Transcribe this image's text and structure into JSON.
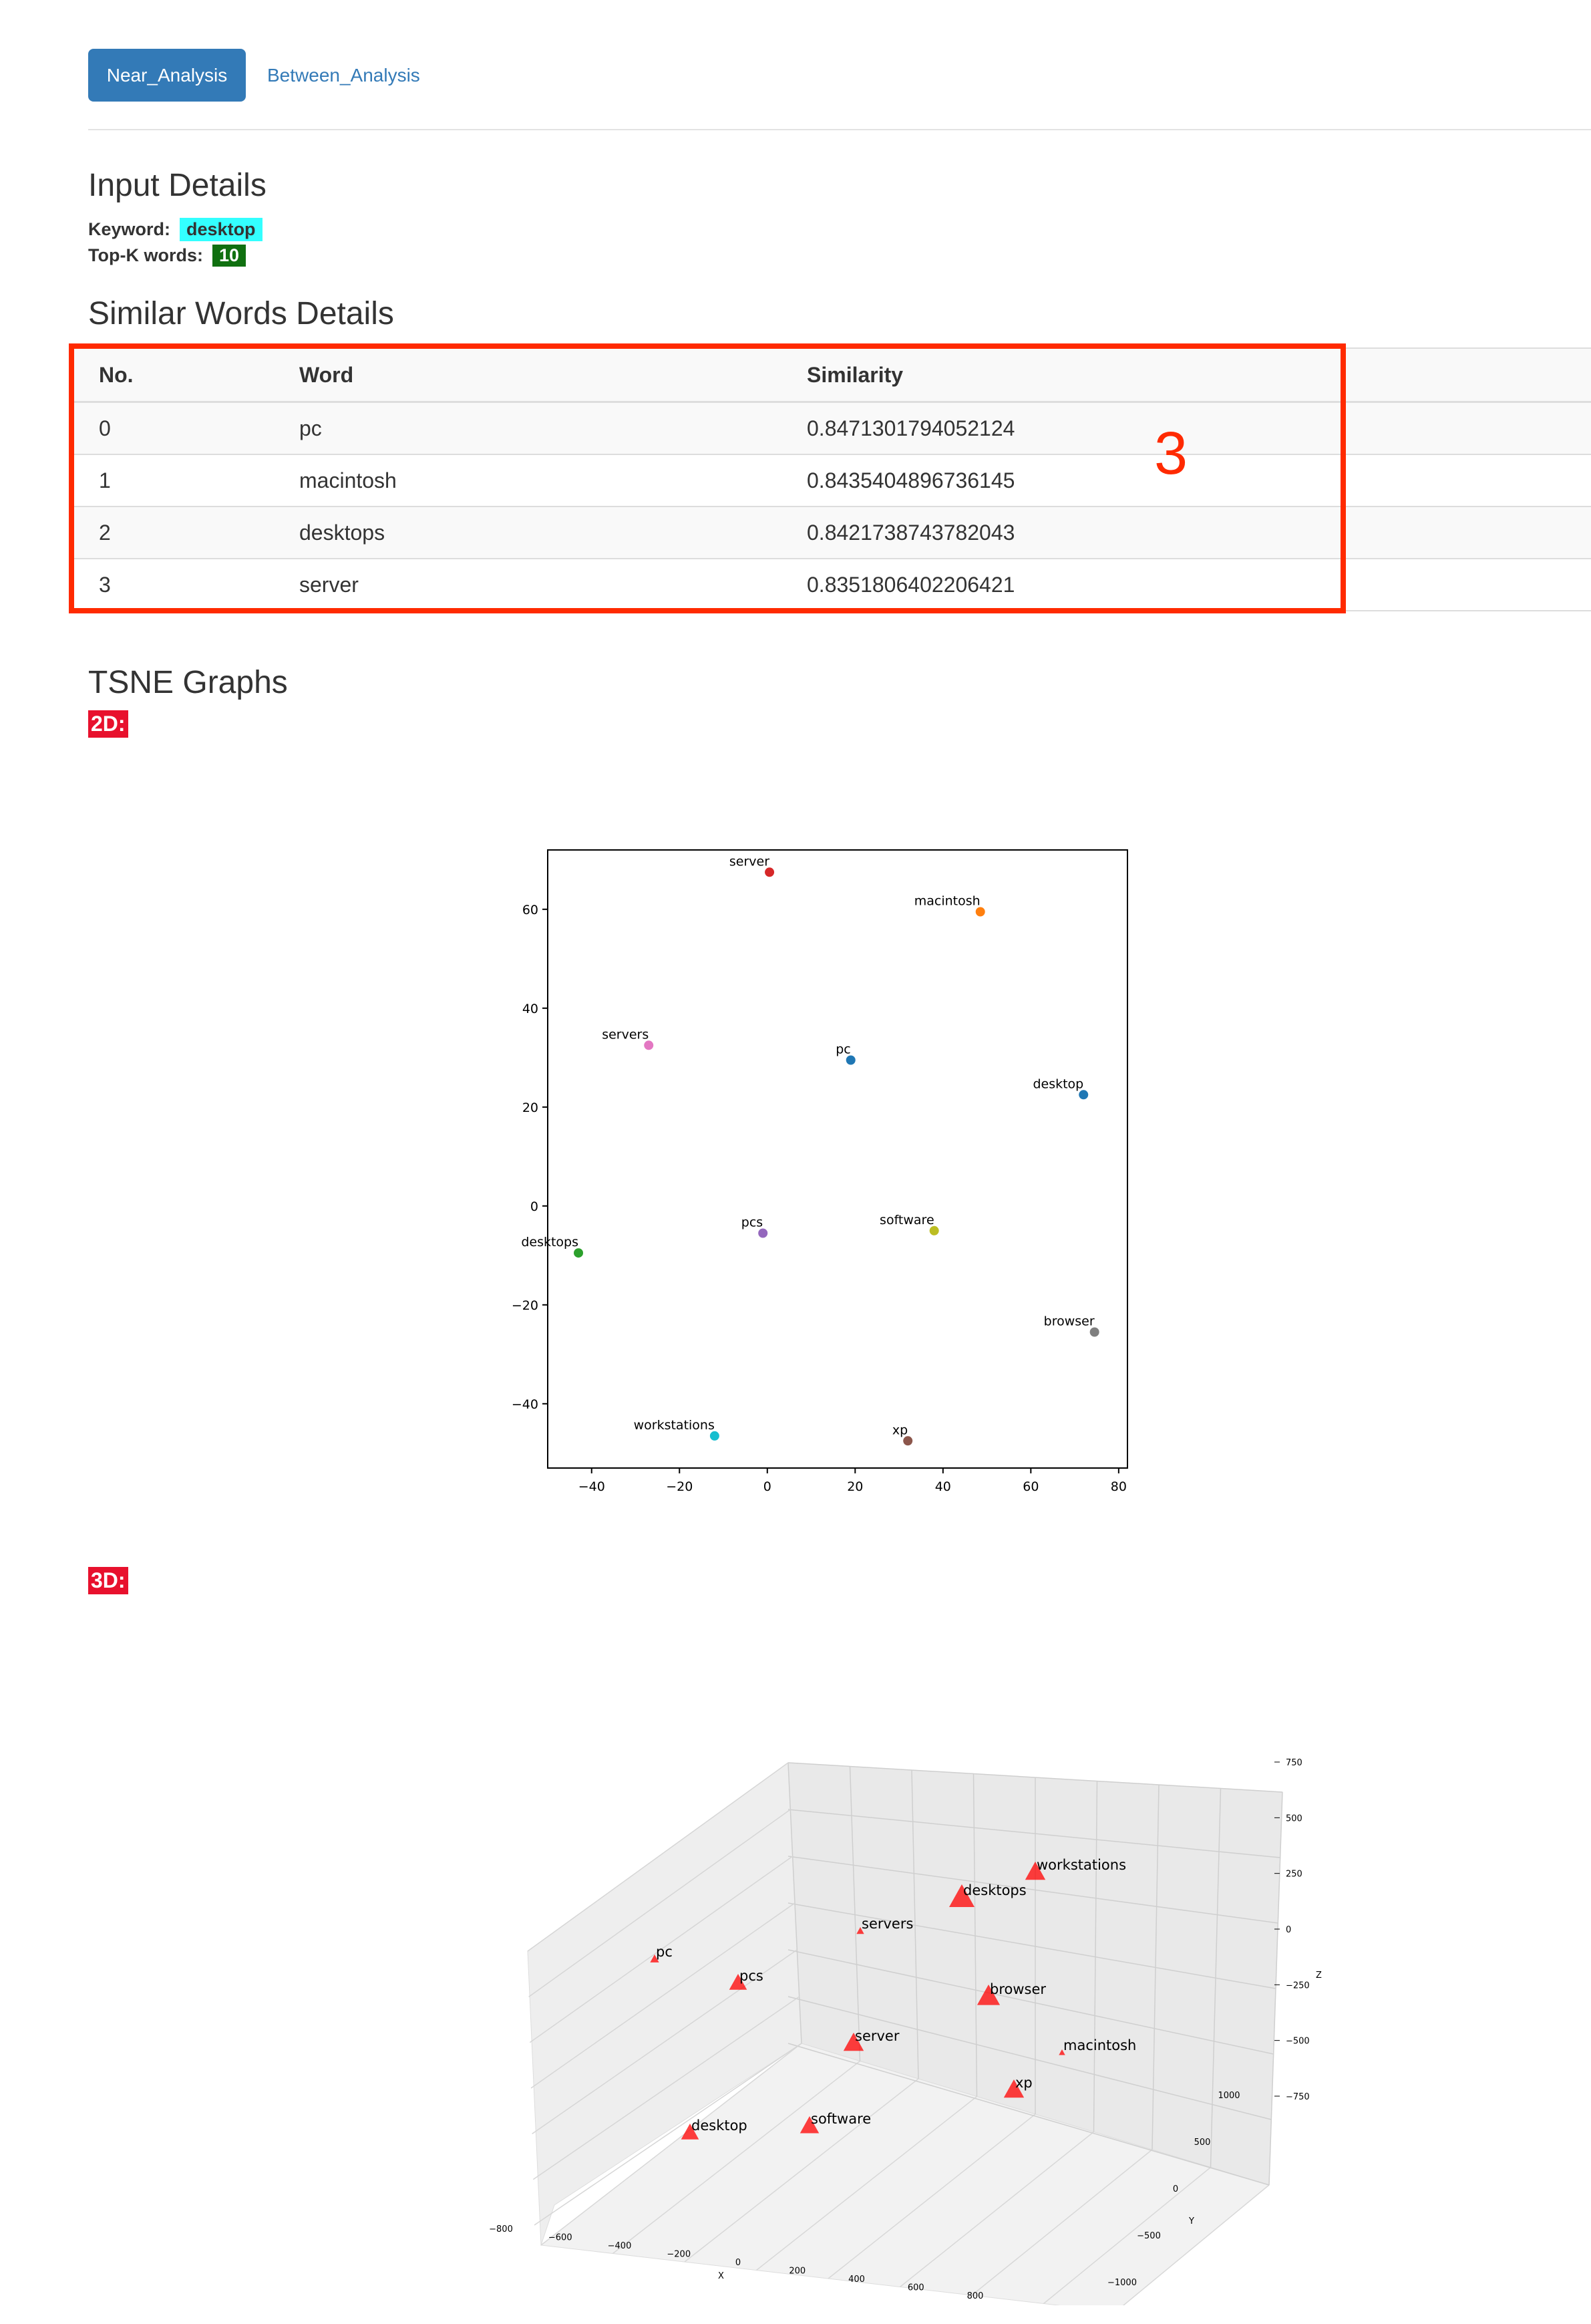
{
  "tabs": {
    "near": "Near_Analysis",
    "between": "Between_Analysis"
  },
  "input_details": {
    "title": "Input Details",
    "keyword_label": "Keyword:",
    "keyword_value": "desktop",
    "topk_label": "Top-K words:",
    "topk_value": "10"
  },
  "similar": {
    "title": "Similar Words Details",
    "headers": [
      "No.",
      "Word",
      "Similarity"
    ],
    "rows": [
      {
        "no": "0",
        "word": "pc",
        "sim": "0.8471301794052124"
      },
      {
        "no": "1",
        "word": "macintosh",
        "sim": "0.8435404896736145"
      },
      {
        "no": "2",
        "word": "desktops",
        "sim": "0.8421738743782043"
      },
      {
        "no": "3",
        "word": "server",
        "sim": "0.8351806402206421"
      }
    ],
    "annotation": "3"
  },
  "tsne": {
    "title": "TSNE Graphs",
    "label_2d": "2D:",
    "label_3d": "3D:"
  },
  "chart_data": [
    {
      "type": "scatter",
      "xlim": [
        -50,
        82
      ],
      "ylim": [
        -53,
        72
      ],
      "xticks": [
        -40,
        -20,
        0,
        20,
        40,
        60,
        80
      ],
      "yticks": [
        -40,
        -20,
        0,
        20,
        40,
        60
      ],
      "points": [
        {
          "label": "pc",
          "x": 19,
          "y": 29.5,
          "color": "#1f77b4"
        },
        {
          "label": "macintosh",
          "x": 48.5,
          "y": 59.5,
          "color": "#ff7f0e"
        },
        {
          "label": "desktops",
          "x": -43,
          "y": -9.5,
          "color": "#2ca02c"
        },
        {
          "label": "server",
          "x": 0.5,
          "y": 67.5,
          "color": "#d62728"
        },
        {
          "label": "pcs",
          "x": -1,
          "y": -5.5,
          "color": "#9467bd"
        },
        {
          "label": "xp",
          "x": 32,
          "y": -47.5,
          "color": "#8c564b"
        },
        {
          "label": "servers",
          "x": -27,
          "y": 32.5,
          "color": "#e377c2"
        },
        {
          "label": "browser",
          "x": 74.5,
          "y": -25.5,
          "color": "#7f7f7f"
        },
        {
          "label": "software",
          "x": 38,
          "y": -5,
          "color": "#bcbd22"
        },
        {
          "label": "workstations",
          "x": -12,
          "y": -46.5,
          "color": "#17becf"
        },
        {
          "label": "desktop",
          "x": 72,
          "y": 22.5,
          "color": "#1f77b4"
        }
      ]
    },
    {
      "type": "scatter",
      "subtype": "3d",
      "xlabel": "X",
      "ylabel": "Y",
      "zlabel": "Z",
      "xticks": [
        -800,
        -600,
        -400,
        -200,
        0,
        200,
        400,
        600,
        800
      ],
      "yticks": [
        -1000,
        -500,
        0,
        500,
        1000
      ],
      "zticks": [
        -750,
        -500,
        -250,
        0,
        250,
        500,
        750
      ],
      "marker_color": "#ff0000",
      "points": [
        {
          "label": "workstations"
        },
        {
          "label": "desktops"
        },
        {
          "label": "servers"
        },
        {
          "label": "pc"
        },
        {
          "label": "pcs"
        },
        {
          "label": "browser"
        },
        {
          "label": "server"
        },
        {
          "label": "macintosh"
        },
        {
          "label": "xp"
        },
        {
          "label": "software"
        },
        {
          "label": "desktop"
        }
      ]
    }
  ]
}
